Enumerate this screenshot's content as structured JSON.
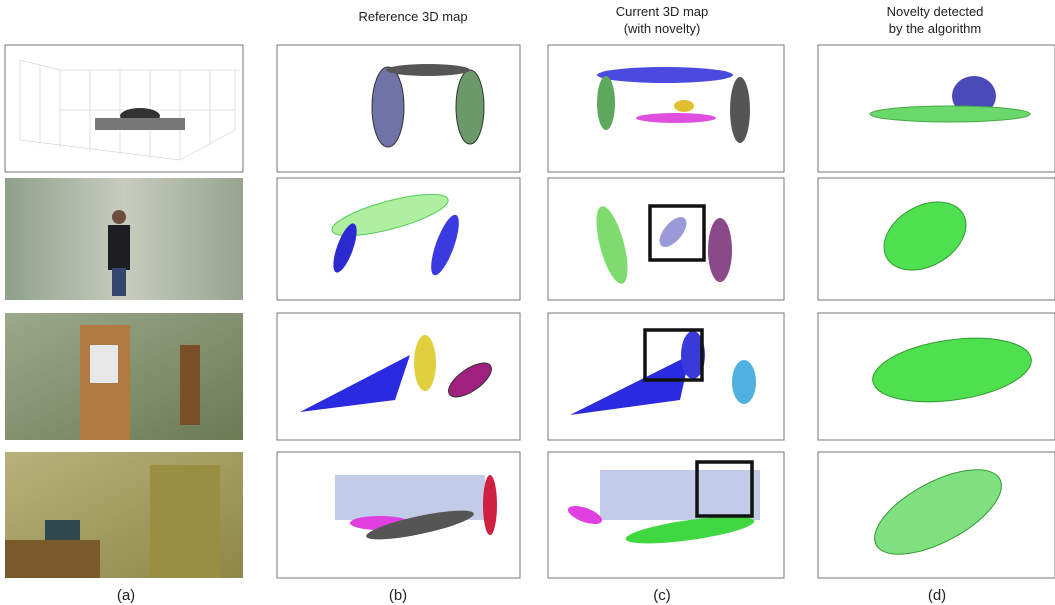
{
  "header": {
    "columns": [
      {
        "lines": [
          "Reference 3D map"
        ]
      },
      {
        "lines": [
          "Current 3D map",
          "(with novelty)"
        ]
      },
      {
        "lines": [
          "Novelty detected",
          "by the algorithm"
        ]
      }
    ]
  },
  "captions": [
    "(a)",
    "(b)",
    "(c)",
    "(d)"
  ]
}
